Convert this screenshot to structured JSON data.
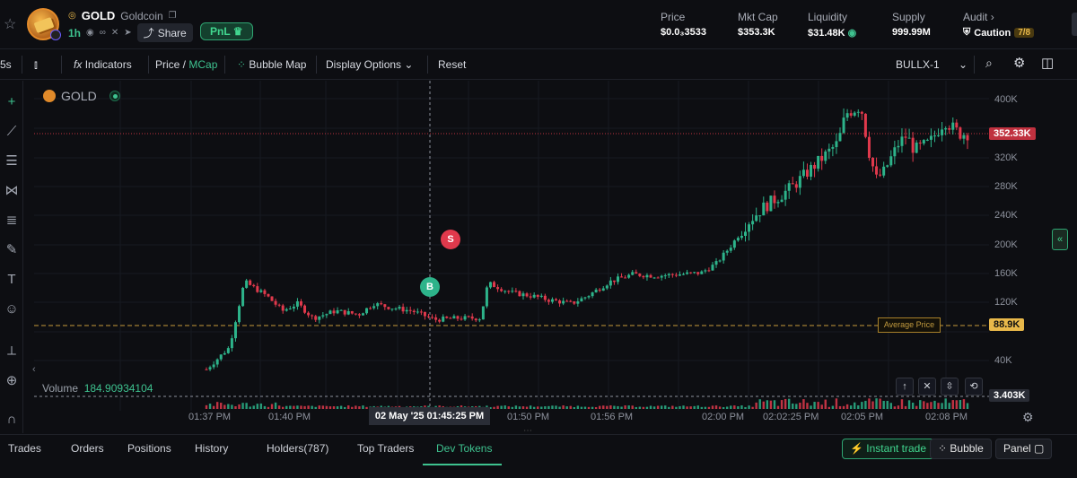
{
  "header": {
    "symbol": "GOLD",
    "name": "Goldcoin",
    "age": "1h",
    "share_label": "Share",
    "pnl_label": "PnL",
    "stats": [
      {
        "label": "Price",
        "value": "$0.0₃3533"
      },
      {
        "label": "Mkt Cap",
        "value": "$353.3K"
      },
      {
        "label": "Liquidity",
        "value": "$31.48K"
      },
      {
        "label": "Supply",
        "value": "999.99M"
      },
      {
        "label": "Audit",
        "value": "Caution",
        "badge": "7/8"
      }
    ]
  },
  "toolbar": {
    "interval": "5s",
    "indicators": "Indicators",
    "price": "Price",
    "mcap": "MCap",
    "bubble_map": "Bubble Map",
    "display_options": "Display Options",
    "reset": "Reset",
    "source": "BULLX-1"
  },
  "chart": {
    "symbol": "GOLD",
    "volume_label": "Volume",
    "volume_value": "184.90934104",
    "last_price_tag": "352.33K",
    "avg_price_tag": "88.9K",
    "avg_price_label": "Average Price",
    "volume_tag": "3.403K",
    "buy_marker": "B",
    "sell_marker": "S",
    "crosshair_time": "02 May '25   01:45:25 PM",
    "y_ticks": [
      "400K",
      "320K",
      "280K",
      "240K",
      "200K",
      "160K",
      "120K",
      "40K"
    ],
    "x_ticks": [
      "01:37 PM",
      "01:40 PM",
      "01:50 PM",
      "01:56 PM",
      "02:00 PM",
      "02:02:25 PM",
      "02:05 PM",
      "02:08 PM"
    ],
    "colors": {
      "up": "#2db38a",
      "down": "#e0394c",
      "avg": "#c89b3a",
      "last": "#c0313f"
    }
  },
  "chart_data": {
    "type": "candlestick",
    "x": [
      "01:37 PM",
      "01:40 PM",
      "01:50 PM",
      "01:56 PM",
      "02:00 PM",
      "02:02:25 PM",
      "02:05 PM",
      "02:08 PM"
    ],
    "y_ticks": [
      "40K",
      "120K",
      "160K",
      "200K",
      "240K",
      "280K",
      "320K",
      "400K"
    ],
    "ylim": [
      20000,
      420000
    ],
    "series": [
      {
        "values": [
          [
            0.0,
            30000
          ],
          [
            0.03,
            60000
          ],
          [
            0.05,
            150000
          ],
          [
            0.08,
            130000
          ],
          [
            0.1,
            110000
          ],
          [
            0.12,
            120000
          ],
          [
            0.14,
            100000
          ],
          [
            0.17,
            110000
          ],
          [
            0.2,
            105000
          ],
          [
            0.22,
            120000
          ],
          [
            0.24,
            115000
          ],
          [
            0.27,
            110000
          ],
          [
            0.3,
            98000
          ],
          [
            0.33,
            100000
          ],
          [
            0.36,
            100000
          ],
          [
            0.37,
            148000
          ],
          [
            0.4,
            135000
          ],
          [
            0.43,
            130000
          ],
          [
            0.45,
            125000
          ],
          [
            0.48,
            120000
          ],
          [
            0.5,
            130000
          ],
          [
            0.53,
            150000
          ],
          [
            0.56,
            160000
          ],
          [
            0.59,
            158000
          ],
          [
            0.62,
            160000
          ],
          [
            0.65,
            162000
          ],
          [
            0.67,
            175000
          ],
          [
            0.69,
            200000
          ],
          [
            0.71,
            230000
          ],
          [
            0.73,
            250000
          ],
          [
            0.75,
            265000
          ],
          [
            0.77,
            280000
          ],
          [
            0.79,
            300000
          ],
          [
            0.81,
            320000
          ],
          [
            0.83,
            340000
          ],
          [
            0.84,
            380000
          ],
          [
            0.86,
            390000
          ],
          [
            0.87,
            330000
          ],
          [
            0.88,
            290000
          ],
          [
            0.89,
            300000
          ],
          [
            0.91,
            340000
          ],
          [
            0.92,
            350000
          ],
          [
            0.93,
            330000
          ],
          [
            0.95,
            340000
          ],
          [
            0.97,
            370000
          ],
          [
            0.99,
            352330
          ]
        ]
      }
    ]
  },
  "tabs": [
    "Trades",
    "Orders",
    "Positions",
    "History",
    "Holders(787)",
    "Top Traders",
    "Dev Tokens"
  ],
  "bottom_buttons": {
    "instant": "Instant trade",
    "bubble": "Bubble",
    "panel": "Panel"
  }
}
